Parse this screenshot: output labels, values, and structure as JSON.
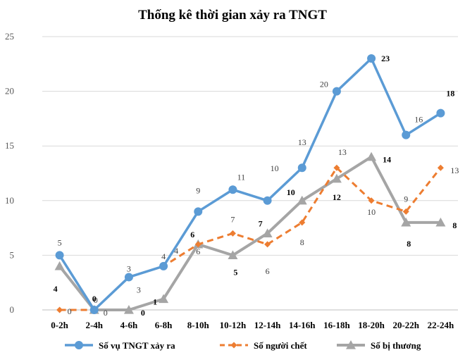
{
  "chart_data": {
    "type": "line",
    "title": "Thống kê thời gian xảy ra TNGT",
    "xlabel": "",
    "ylabel": "",
    "ylim": [
      0,
      25
    ],
    "yticks": [
      0,
      5,
      10,
      15,
      20,
      25
    ],
    "grid": true,
    "legend": "bottom",
    "categories": [
      "0-2h",
      "2-4h",
      "4-6h",
      "6-8h",
      "8-10h",
      "10-12h",
      "12-14h",
      "14-16h",
      "16-18h",
      "18-20h",
      "20-22h",
      "22-24h"
    ],
    "series": [
      {
        "name": "Số vụ TNGT xảy ra",
        "color": "#5B9BD5",
        "style": "solid-circle",
        "values": [
          5,
          0,
          3,
          4,
          9,
          11,
          10,
          13,
          20,
          23,
          16,
          18
        ]
      },
      {
        "name": "Số người chết",
        "color": "#ED7D31",
        "style": "dashed-diamond",
        "values": [
          0,
          0,
          3,
          4,
          6,
          7,
          6,
          8,
          13,
          10,
          9,
          13
        ]
      },
      {
        "name": "Số bị thương",
        "color": "#A5A5A5",
        "style": "solid-triangle",
        "values": [
          4,
          0,
          0,
          1,
          6,
          5,
          7,
          10,
          12,
          14,
          8,
          8
        ]
      }
    ]
  }
}
